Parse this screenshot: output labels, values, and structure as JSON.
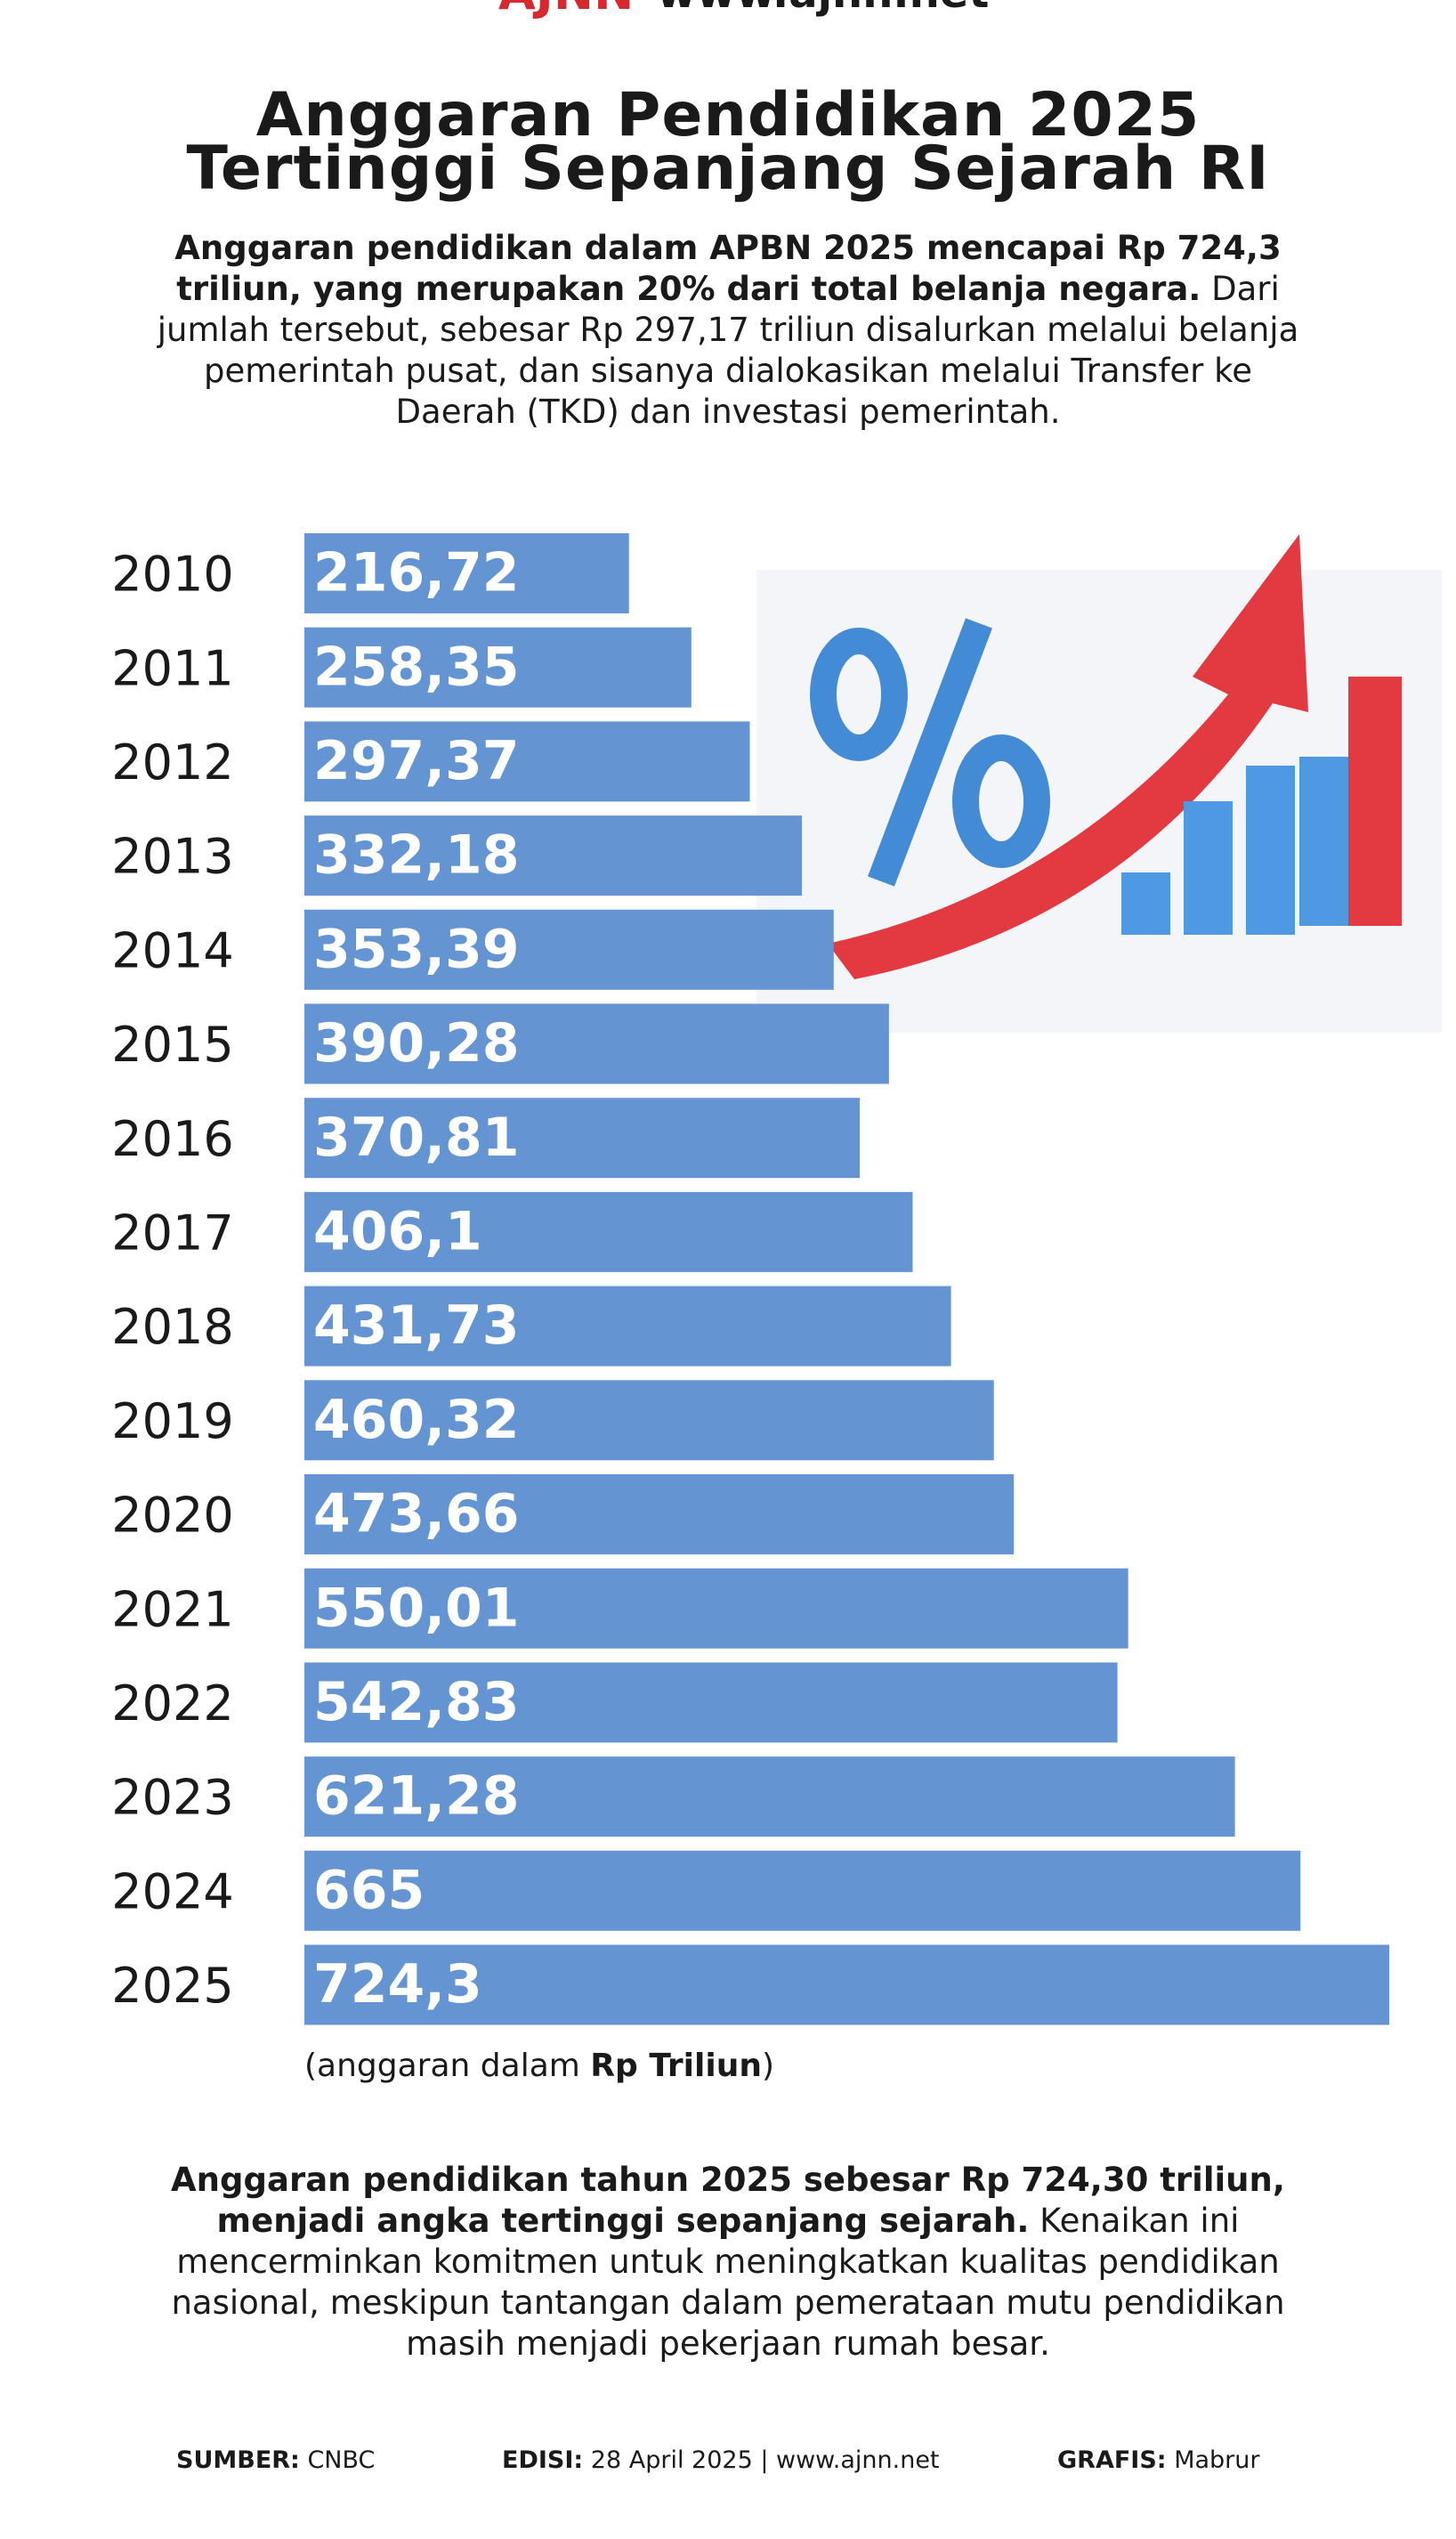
{
  "header": {
    "logo": "AJNN",
    "site": "www.ajnn.net"
  },
  "title_lines": [
    "Anggaran Pendidikan 2025",
    "Tertinggi Sepanjang Sejarah RI"
  ],
  "intro": {
    "bold": "Anggaran pendidikan dalam APBN 2025 mencapai Rp 724,3 triliun, yang merupakan 20% dari total belanja negara.",
    "text": " Dari jumlah tersebut, sebesar Rp 297,17 triliun disalurkan melalui belanja pemerintah pusat, dan sisanya dialokasikan melalui Transfer ke Daerah (TKD) dan investasi pemerintah."
  },
  "chart_data": {
    "type": "bar",
    "orientation": "horizontal",
    "color": "#6594d2",
    "categories": [
      "2010",
      "2011",
      "2012",
      "2013",
      "2014",
      "2015",
      "2016",
      "2017",
      "2018",
      "2019",
      "2020",
      "2021",
      "2022",
      "2023",
      "2024",
      "2025"
    ],
    "values": [
      216.72,
      258.35,
      297.37,
      332.18,
      353.39,
      390.28,
      370.81,
      406.1,
      431.73,
      460.32,
      473.66,
      550.01,
      542.83,
      621.28,
      665,
      724.3
    ],
    "value_labels": [
      "216,72",
      "258,35",
      "297,37",
      "332,18",
      "353,39",
      "390,28",
      "370,81",
      "406,1",
      "431,73",
      "460,32",
      "473,66",
      "550,01",
      "542,83",
      "621,28",
      "665",
      "724,3"
    ],
    "note": {
      "prefix": "(anggaran dalam ",
      "bold": "Rp Triliun",
      "suffix": ")"
    }
  },
  "outro": {
    "bold": "Anggaran pendidikan tahun 2025 sebesar Rp 724,30 triliun, menjadi angka tertinggi sepanjang sejarah.",
    "text": " Kenaikan ini mencerminkan komitmen untuk meningkatkan kualitas pendidikan nasional, meskipun tantangan dalam pemerataan mutu pendidikan masih menjadi pekerjaan rumah besar."
  },
  "footer": {
    "source_label": "SUMBER:",
    "source": "CNBC",
    "edition_label": "EDISI:",
    "edition": "28 April 2025 | www.ajnn.net",
    "graphic_label": "GRAFIS:",
    "graphic": "Mabrur"
  }
}
